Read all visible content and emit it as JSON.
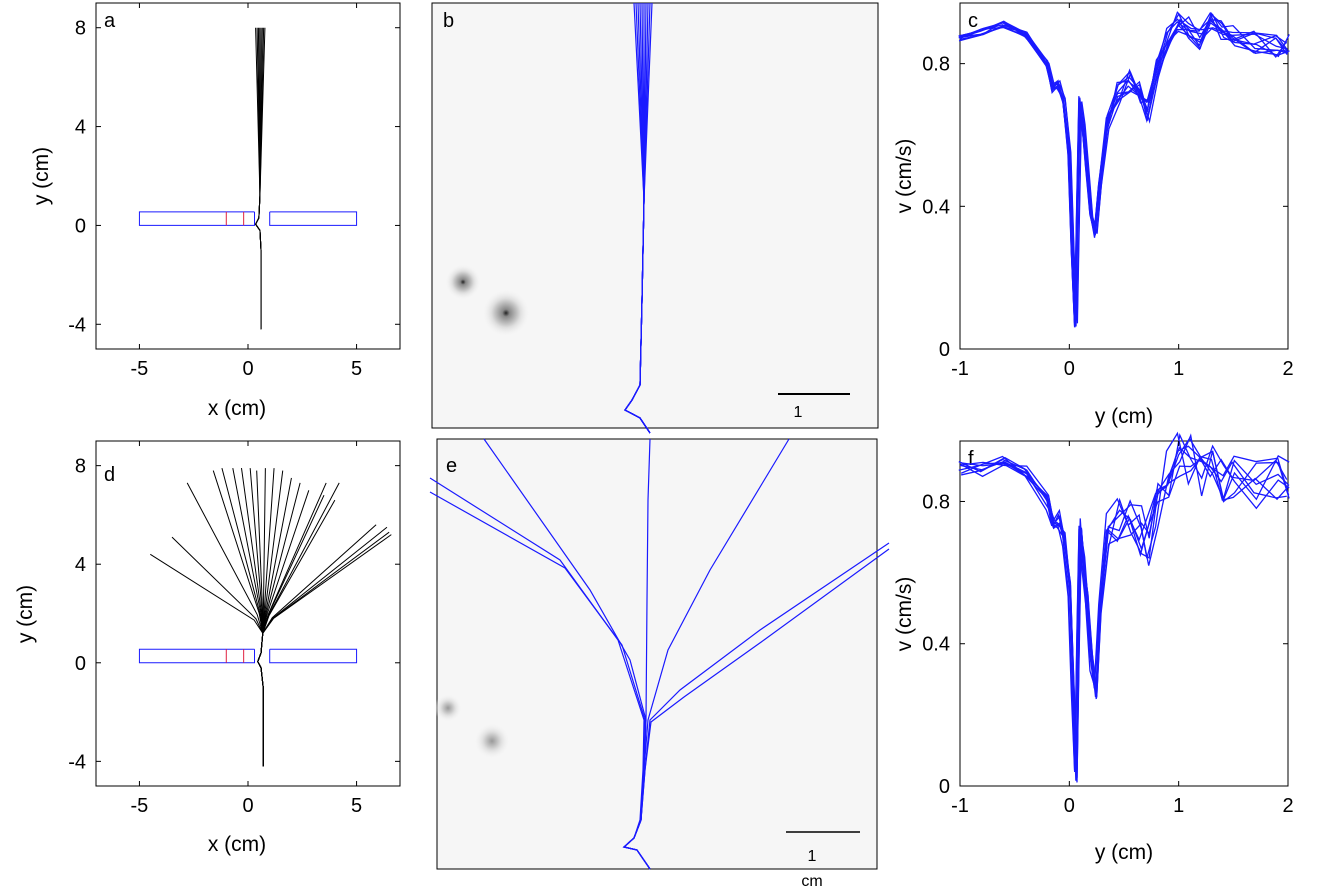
{
  "chart_data": [
    {
      "panel": "a",
      "type": "line",
      "xlabel": "x (cm)",
      "ylabel": "y (cm)",
      "xlim": [
        -7,
        7
      ],
      "ylim": [
        -5,
        9
      ],
      "xticks": [
        -5,
        0,
        5
      ],
      "yticks": [
        -4,
        0,
        4,
        8
      ],
      "xtick_labels": [
        "-5",
        "0",
        "5"
      ],
      "ytick_labels": [
        "-4",
        "0",
        "4",
        "8"
      ],
      "trajectory_end_x": [
        0.35,
        0.42,
        0.48,
        0.54,
        0.6,
        0.66,
        0.72,
        0.78
      ],
      "trajectory_end_y": 8,
      "start": [
        0.6,
        -4.2
      ],
      "trajectory_color": "#000000"
    },
    {
      "panel": "b",
      "type": "line",
      "scale_bar_label": "1",
      "trajectory_color": "#1a1aff"
    },
    {
      "panel": "c",
      "type": "line",
      "xlabel": "y (cm)",
      "ylabel": "v (cm/s)",
      "xlim": [
        -1,
        2
      ],
      "ylim": [
        0,
        0.97
      ],
      "xticks": [
        -1,
        0,
        1,
        2
      ],
      "yticks": [
        0,
        0.4,
        0.8
      ],
      "xtick_labels": [
        "-1",
        "0",
        "1",
        "2"
      ],
      "ytick_labels": [
        "0",
        "0.4",
        "0.8"
      ],
      "series_count": 10,
      "mean_curve": {
        "x": [
          -1.0,
          -0.8,
          -0.6,
          -0.4,
          -0.2,
          -0.15,
          -0.1,
          -0.05,
          0.0,
          0.03,
          0.06,
          0.08,
          0.1,
          0.13,
          0.16,
          0.2,
          0.24,
          0.28,
          0.35,
          0.45,
          0.55,
          0.65,
          0.72,
          0.8,
          0.9,
          1.0,
          1.1,
          1.2,
          1.3,
          1.4,
          1.5,
          1.7,
          1.9,
          2.0
        ],
        "y": [
          0.87,
          0.89,
          0.91,
          0.88,
          0.8,
          0.73,
          0.74,
          0.7,
          0.55,
          0.28,
          0.07,
          0.4,
          0.7,
          0.62,
          0.52,
          0.38,
          0.32,
          0.46,
          0.63,
          0.72,
          0.75,
          0.72,
          0.67,
          0.78,
          0.87,
          0.92,
          0.9,
          0.87,
          0.93,
          0.9,
          0.88,
          0.86,
          0.85,
          0.85
        ]
      },
      "line_color": "#1a1aff"
    },
    {
      "panel": "d",
      "type": "line",
      "xlabel": "x (cm)",
      "ylabel": "y (cm)",
      "xlim": [
        -7,
        7
      ],
      "ylim": [
        -5,
        9
      ],
      "xticks": [
        -5,
        0,
        5
      ],
      "yticks": [
        -4,
        0,
        4,
        8
      ],
      "xtick_labels": [
        "-5",
        "0",
        "5"
      ],
      "ytick_labels": [
        "-4",
        "0",
        "4",
        "8"
      ],
      "fan_endpoints": [
        [
          -2.8,
          7.3
        ],
        [
          -1.6,
          7.8
        ],
        [
          -1.2,
          7.9
        ],
        [
          -0.7,
          7.9
        ],
        [
          -0.3,
          7.9
        ],
        [
          0.1,
          7.9
        ],
        [
          0.4,
          7.8
        ],
        [
          0.8,
          7.9
        ],
        [
          1.2,
          7.9
        ],
        [
          1.6,
          7.8
        ],
        [
          2.0,
          7.5
        ],
        [
          2.4,
          7.3
        ],
        [
          2.8,
          7.0
        ],
        [
          3.5,
          6.8
        ],
        [
          4.0,
          6.6
        ],
        [
          4.2,
          7.3
        ],
        [
          -3.5,
          5.1
        ],
        [
          -4.5,
          4.4
        ],
        [
          6.5,
          5.3
        ],
        [
          6.6,
          5.2
        ],
        [
          6.4,
          5.5
        ],
        [
          5.9,
          5.6
        ],
        [
          3.6,
          7.3
        ]
      ],
      "start": [
        0.7,
        -4.2
      ],
      "trajectory_color": "#000000"
    },
    {
      "panel": "e",
      "type": "line",
      "scale_bar_label": "1",
      "scale_bar_unit": "cm",
      "trajectory_color": "#1a1aff"
    },
    {
      "panel": "f",
      "type": "line",
      "xlabel": "y (cm)",
      "ylabel": "v (cm/s)",
      "xlim": [
        -1,
        2
      ],
      "ylim": [
        0,
        0.97
      ],
      "xticks": [
        -1,
        0,
        1,
        2
      ],
      "yticks": [
        0,
        0.4,
        0.8
      ],
      "xtick_labels": [
        "-1",
        "0",
        "1",
        "2"
      ],
      "ytick_labels": [
        "0",
        "0.4",
        "0.8"
      ],
      "series_count": 8,
      "mean_curve": {
        "x": [
          -1.0,
          -0.8,
          -0.6,
          -0.4,
          -0.2,
          -0.15,
          -0.1,
          -0.05,
          0.0,
          0.03,
          0.06,
          0.08,
          0.1,
          0.13,
          0.16,
          0.2,
          0.24,
          0.28,
          0.35,
          0.45,
          0.55,
          0.65,
          0.72,
          0.8,
          0.9,
          1.0,
          1.1,
          1.2,
          1.3,
          1.4,
          1.5,
          1.7,
          1.9,
          2.0
        ],
        "y": [
          0.89,
          0.89,
          0.91,
          0.88,
          0.8,
          0.73,
          0.75,
          0.7,
          0.55,
          0.28,
          0.03,
          0.4,
          0.73,
          0.62,
          0.52,
          0.35,
          0.27,
          0.5,
          0.7,
          0.74,
          0.73,
          0.72,
          0.68,
          0.78,
          0.88,
          0.93,
          0.92,
          0.88,
          0.9,
          0.85,
          0.87,
          0.85,
          0.86,
          0.84
        ]
      },
      "line_color": "#1a1aff"
    }
  ]
}
